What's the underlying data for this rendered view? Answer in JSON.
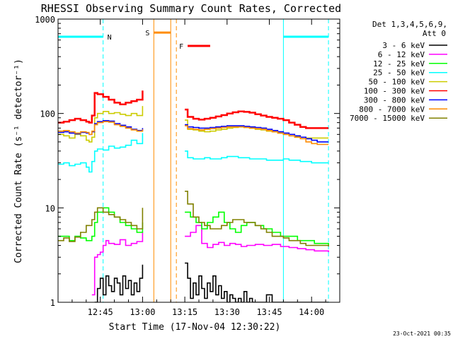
{
  "chart_data": {
    "type": "line",
    "title": "RHESSI Observing Summary Count Rates, Corrected",
    "xlabel": "Start Time (17-Nov-04 12:30:22)",
    "ylabel": "Corrected Count Rate (s⁻¹ detector⁻¹)",
    "yscale": "log",
    "ylim": [
      1,
      1000
    ],
    "xlim_minutes": [
      0,
      100
    ],
    "x_ticks": [
      {
        "minute": 15,
        "label": "12:45"
      },
      {
        "minute": 30,
        "label": "13:00"
      },
      {
        "minute": 45,
        "label": "13:15"
      },
      {
        "minute": 60,
        "label": "13:30"
      },
      {
        "minute": 75,
        "label": "13:45"
      },
      {
        "minute": 90,
        "label": "14:00"
      }
    ],
    "y_ticks": [
      {
        "value": 1,
        "label": "1"
      },
      {
        "value": 10,
        "label": "10"
      },
      {
        "value": 100,
        "label": "100"
      },
      {
        "value": 1000,
        "label": "1000"
      }
    ],
    "legend_header": [
      "Det 1,3,4,5,6,9,",
      "Att 0"
    ],
    "legend_position": "right",
    "series": [
      {
        "name": "3 - 6 keV",
        "color": "#000000",
        "x": [
          13,
          14,
          15,
          16,
          17,
          18,
          19,
          20,
          21,
          22,
          23,
          24,
          25,
          26,
          27,
          28,
          29,
          30,
          35,
          40,
          45,
          46,
          47,
          48,
          49,
          50,
          51,
          52,
          53,
          54,
          55,
          56,
          57,
          58,
          59,
          60,
          61,
          62,
          63,
          64,
          65,
          66,
          67,
          68,
          69,
          70,
          72,
          74,
          76,
          78,
          80,
          82,
          84,
          86,
          88,
          90,
          92,
          94,
          96
        ],
        "y": [
          1,
          1.4,
          1.8,
          1.2,
          1.9,
          1.5,
          1.3,
          1.8,
          1.6,
          1.2,
          1.9,
          1.4,
          1.7,
          1.2,
          1.6,
          1.3,
          1.8,
          2.5,
          null,
          null,
          2.6,
          1.8,
          1.1,
          1.6,
          1.2,
          1.9,
          1.4,
          1.1,
          1.6,
          1.3,
          1.9,
          1.2,
          1.5,
          1.1,
          1.3,
          1.0,
          1.2,
          1.1,
          1.0,
          1.1,
          1.0,
          1.3,
          1.0,
          1.1,
          1.0,
          1.0,
          1.0,
          1.2,
          1.0,
          1.0,
          1.0,
          1.0,
          1.0,
          1.0,
          1.0,
          1.0,
          1.0,
          1.0,
          1.0
        ]
      },
      {
        "name": "6 - 12 keV",
        "color": "#ff00ff",
        "x": [
          12,
          13,
          14,
          15,
          16,
          17,
          18,
          20,
          22,
          24,
          26,
          28,
          30,
          35,
          40,
          45,
          47,
          49,
          51,
          53,
          55,
          57,
          59,
          61,
          63,
          65,
          67,
          70,
          73,
          76,
          79,
          82,
          85,
          88,
          91,
          94,
          96
        ],
        "y": [
          1.2,
          3,
          3.2,
          3.4,
          4,
          4.5,
          4.2,
          4.1,
          4.6,
          4.0,
          4.2,
          4.4,
          5.5,
          null,
          null,
          5,
          5.5,
          6.5,
          4.2,
          3.8,
          4.1,
          4.3,
          4.0,
          4.2,
          4.1,
          3.9,
          4.0,
          4.1,
          4.0,
          4.1,
          3.9,
          3.8,
          3.7,
          3.6,
          3.5,
          3.5,
          3.4
        ]
      },
      {
        "name": "12 - 25 keV",
        "color": "#00ff00",
        "x": [
          0,
          2,
          4,
          6,
          8,
          10,
          12,
          13,
          14,
          16,
          18,
          20,
          22,
          24,
          26,
          28,
          30,
          35,
          40,
          45,
          47,
          49,
          51,
          53,
          55,
          57,
          59,
          61,
          63,
          65,
          67,
          70,
          73,
          76,
          79,
          82,
          85,
          88,
          91,
          94,
          96
        ],
        "y": [
          5,
          5,
          4.5,
          5,
          4.8,
          4.5,
          5,
          7,
          9,
          10,
          9,
          8,
          7,
          6.5,
          6,
          5.5,
          7,
          null,
          null,
          9,
          8,
          7,
          6,
          7,
          8,
          9,
          7,
          6,
          5.5,
          6.5,
          7,
          6.5,
          6,
          5.5,
          5,
          5,
          4.5,
          4.5,
          4.2,
          4.2,
          4.0
        ]
      },
      {
        "name": "25 - 50 keV",
        "color": "#00ffff",
        "x": [
          0,
          2,
          4,
          6,
          8,
          10,
          11,
          12,
          13,
          14,
          16,
          18,
          20,
          22,
          24,
          26,
          28,
          30,
          35,
          40,
          45,
          46,
          48,
          50,
          52,
          54,
          56,
          58,
          60,
          62,
          64,
          66,
          68,
          70,
          72,
          74,
          76,
          78,
          80,
          82,
          84,
          86,
          88,
          90,
          92,
          94,
          96
        ],
        "y": [
          29,
          30,
          28,
          29,
          30,
          27,
          24,
          31,
          40,
          42,
          41,
          45,
          43,
          44,
          46,
          52,
          48,
          62,
          null,
          null,
          40,
          34,
          33,
          33,
          34,
          33,
          33,
          34,
          35,
          35,
          34,
          34,
          33,
          33,
          33,
          32,
          32,
          32,
          33,
          32,
          32,
          31,
          31,
          30,
          30,
          30,
          30
        ]
      },
      {
        "name": "50 - 100 keV",
        "color": "#cccc00",
        "x": [
          0,
          2,
          4,
          6,
          8,
          10,
          11,
          12,
          13,
          14,
          16,
          18,
          20,
          22,
          24,
          26,
          28,
          30,
          35,
          40,
          45,
          46,
          48,
          50,
          52,
          54,
          56,
          58,
          60,
          62,
          64,
          66,
          68,
          70,
          72,
          74,
          76,
          78,
          80,
          82,
          84,
          86,
          88,
          90,
          92,
          94,
          96
        ],
        "y": [
          60,
          58,
          55,
          60,
          58,
          52,
          50,
          56,
          90,
          100,
          105,
          100,
          102,
          98,
          95,
          100,
          95,
          120,
          null,
          null,
          85,
          68,
          67,
          65,
          64,
          65,
          67,
          68,
          70,
          71,
          72,
          71,
          70,
          68,
          67,
          65,
          64,
          62,
          60,
          58,
          57,
          56,
          55,
          55,
          55,
          55,
          55
        ]
      },
      {
        "name": "100 - 300 keV",
        "color": "#ff0000",
        "x": [
          0,
          2,
          4,
          6,
          8,
          10,
          11,
          12,
          13,
          14,
          16,
          18,
          20,
          22,
          24,
          26,
          28,
          30,
          35,
          40,
          45,
          46,
          48,
          50,
          52,
          54,
          56,
          58,
          60,
          62,
          64,
          66,
          68,
          70,
          72,
          74,
          76,
          78,
          80,
          82,
          84,
          86,
          88,
          90,
          92,
          94,
          96
        ],
        "y": [
          80,
          82,
          85,
          88,
          85,
          82,
          80,
          95,
          165,
          160,
          150,
          140,
          130,
          125,
          130,
          135,
          140,
          175,
          null,
          null,
          110,
          92,
          88,
          86,
          88,
          90,
          93,
          96,
          100,
          103,
          105,
          104,
          102,
          98,
          95,
          92,
          90,
          88,
          85,
          80,
          76,
          72,
          70,
          70,
          70,
          70,
          70
        ]
      },
      {
        "name": "300 - 800 keV",
        "color": "#0000ff",
        "x": [
          0,
          2,
          4,
          6,
          8,
          10,
          11,
          12,
          13,
          14,
          16,
          18,
          20,
          22,
          24,
          26,
          28,
          30,
          35,
          40,
          45,
          46,
          48,
          50,
          52,
          54,
          56,
          58,
          60,
          62,
          64,
          66,
          68,
          70,
          72,
          74,
          76,
          78,
          80,
          82,
          84,
          86,
          88,
          90,
          92,
          94,
          96
        ],
        "y": [
          63,
          64,
          62,
          61,
          63,
          62,
          60,
          64,
          78,
          82,
          84,
          83,
          78,
          75,
          72,
          68,
          66,
          70,
          null,
          null,
          76,
          72,
          71,
          70,
          70,
          71,
          72,
          73,
          74,
          74,
          74,
          73,
          72,
          71,
          70,
          68,
          66,
          64,
          62,
          60,
          58,
          56,
          54,
          52,
          50,
          50,
          50
        ]
      },
      {
        "name": "800 - 7000 keV",
        "color": "#ff8c00",
        "x": [
          0,
          2,
          4,
          6,
          8,
          10,
          11,
          12,
          13,
          14,
          16,
          18,
          20,
          22,
          24,
          26,
          28,
          30,
          35,
          40,
          45,
          46,
          48,
          50,
          52,
          54,
          56,
          58,
          60,
          62,
          64,
          66,
          68,
          70,
          72,
          74,
          76,
          78,
          80,
          82,
          84,
          86,
          88,
          90,
          92,
          94,
          96
        ],
        "y": [
          65,
          66,
          64,
          62,
          64,
          63,
          60,
          65,
          76,
          80,
          82,
          81,
          76,
          73,
          70,
          67,
          65,
          68,
          null,
          null,
          74,
          69,
          68,
          67,
          68,
          69,
          70,
          71,
          72,
          72,
          72,
          71,
          70,
          69,
          68,
          66,
          64,
          62,
          60,
          58,
          56,
          54,
          50,
          48,
          47,
          47,
          47
        ]
      },
      {
        "name": "7000 - 15000 keV",
        "color": "#808000",
        "x": [
          0,
          2,
          4,
          6,
          8,
          10,
          12,
          13,
          14,
          16,
          18,
          20,
          22,
          24,
          26,
          28,
          30,
          35,
          40,
          45,
          46,
          48,
          50,
          52,
          54,
          56,
          58,
          60,
          62,
          64,
          66,
          68,
          70,
          72,
          74,
          76,
          78,
          80,
          82,
          84,
          86,
          88,
          90,
          92,
          94,
          96
        ],
        "y": [
          4.5,
          4.8,
          4.4,
          4.9,
          5.5,
          6.5,
          7.5,
          9,
          10,
          9,
          8.5,
          8,
          7.5,
          7,
          6.5,
          6,
          10,
          null,
          null,
          15,
          11,
          8,
          7,
          6.5,
          6,
          6,
          6.5,
          7,
          7.5,
          7.5,
          7,
          7,
          6.5,
          6,
          5.5,
          5,
          5,
          4.8,
          4.5,
          4.5,
          4.2,
          4.0,
          4.0,
          4.0,
          4.0,
          3.9
        ]
      }
    ],
    "annotations": {
      "night_bars": [
        {
          "label": "N",
          "x0": 0,
          "x1": 16,
          "y": 650,
          "color": "#00ffff"
        },
        {
          "label": "",
          "x0": 80,
          "x1": 96,
          "y": 650,
          "color": "#00ffff"
        }
      ],
      "saa_bar": {
        "label": "S",
        "x0": 34,
        "x1": 40,
        "y": 720,
        "color": "#ff8c00"
      },
      "flare_bar": {
        "label": "F",
        "x0": 46,
        "x1": 54,
        "y": 520,
        "color": "#ff0000"
      },
      "cyan_solid_lines": [
        0,
        80
      ],
      "cyan_dashed_lines": [
        16,
        96
      ],
      "orange_solid_lines": [
        34,
        40
      ],
      "orange_dashed_lines": [
        42
      ]
    },
    "timestamp": "23-Oct-2021 00:35"
  }
}
